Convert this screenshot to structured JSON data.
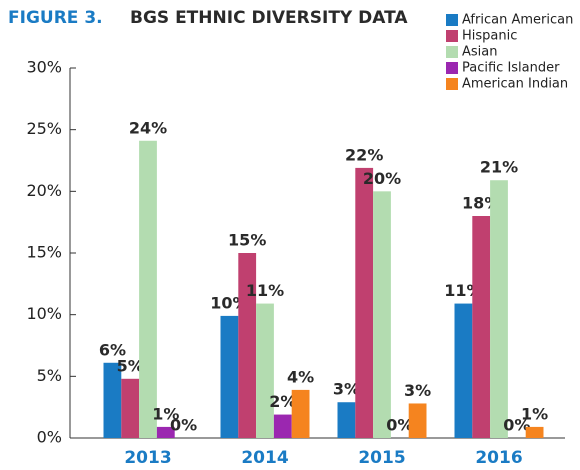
{
  "chart_data": {
    "type": "bar",
    "title_prefix": "FIGURE 3.",
    "title": "BGS ETHNIC DIVERSITY DATA",
    "categories": [
      "2013",
      "2014",
      "2015",
      "2016"
    ],
    "series": [
      {
        "name": "African American",
        "color": "#1a7bc4",
        "values": [
          6.1,
          9.9,
          2.9,
          10.9
        ],
        "value_labels": [
          "6%",
          "10%",
          "3%",
          "11%"
        ]
      },
      {
        "name": "Hispanic",
        "color": "#c0406f",
        "values": [
          4.8,
          15,
          21.9,
          18
        ],
        "value_labels": [
          "5%",
          "15%",
          "22%",
          "18%"
        ]
      },
      {
        "name": "Asian",
        "color": "#b3dcb0",
        "values": [
          24.1,
          10.9,
          20,
          20.9
        ],
        "value_labels": [
          "24%",
          "11%",
          "20%",
          "21%"
        ]
      },
      {
        "name": "Pacific Islander",
        "color": "#9b27b0",
        "values": [
          0.9,
          1.9,
          0,
          0
        ],
        "value_labels": [
          "1%",
          "2%",
          "0%",
          "0%"
        ]
      },
      {
        "name": "American Indian",
        "color": "#f5841f",
        "values": [
          0,
          3.9,
          2.8,
          0.9
        ],
        "value_labels": [
          "0%",
          "4%",
          "3%",
          "1%"
        ]
      }
    ],
    "ylim": [
      0,
      30
    ],
    "yticks": [
      {
        "value": 0,
        "label": "0%"
      },
      {
        "value": 5,
        "label": "5%"
      },
      {
        "value": 10,
        "label": "10%"
      },
      {
        "value": 15,
        "label": "15%"
      },
      {
        "value": 20,
        "label": "20%"
      },
      {
        "value": 25,
        "label": "25%"
      },
      {
        "value": 30,
        "label": "30%"
      }
    ],
    "legend": "top-right"
  }
}
